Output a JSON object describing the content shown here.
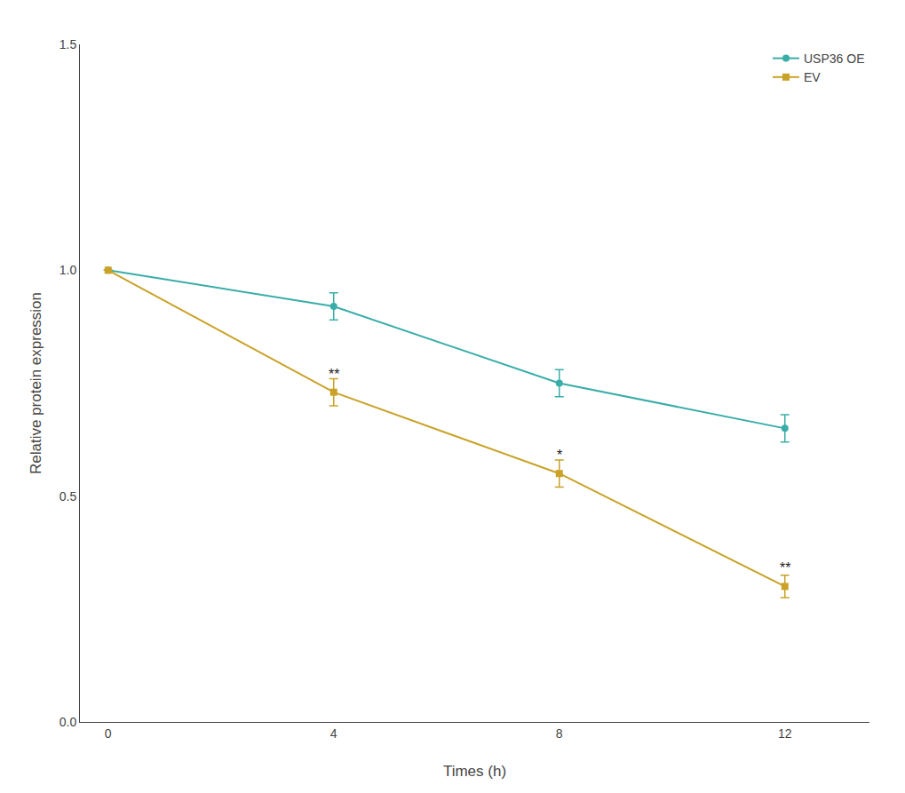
{
  "chart_data": {
    "type": "line",
    "x": [
      0,
      4,
      8,
      12
    ],
    "series": [
      {
        "name": "USP36 OE",
        "color": "#3aada8",
        "values": [
          1.0,
          0.92,
          0.75,
          0.65
        ],
        "error": [
          0.0,
          0.03,
          0.03,
          0.03
        ],
        "marker": "circle",
        "line_style": "solid"
      },
      {
        "name": "EV",
        "color": "#c9a227",
        "values": [
          1.0,
          0.73,
          0.55,
          0.3
        ],
        "error": [
          0.0,
          0.03,
          0.03,
          0.025
        ],
        "marker": "square",
        "line_style": "solid"
      }
    ],
    "xlabel": "Times (h)",
    "ylabel": "Relative protein expression",
    "xlim": [
      -0.5,
      13.5
    ],
    "xticks": [
      0,
      4,
      8,
      12
    ],
    "ylim": [
      0.0,
      1.5
    ],
    "yticks": [
      {
        "value": 0.0,
        "label": "0.0"
      },
      0.5,
      {
        "value": 1.0,
        "label": "1.0"
      },
      1.5
    ],
    "annotations": [
      {
        "x": 4,
        "y": 0.73,
        "text": "**"
      },
      {
        "x": 8,
        "y": 0.55,
        "text": "*"
      },
      {
        "x": 12,
        "y": 0.3,
        "text": "**"
      }
    ],
    "legend": "upper right",
    "grid": false
  }
}
